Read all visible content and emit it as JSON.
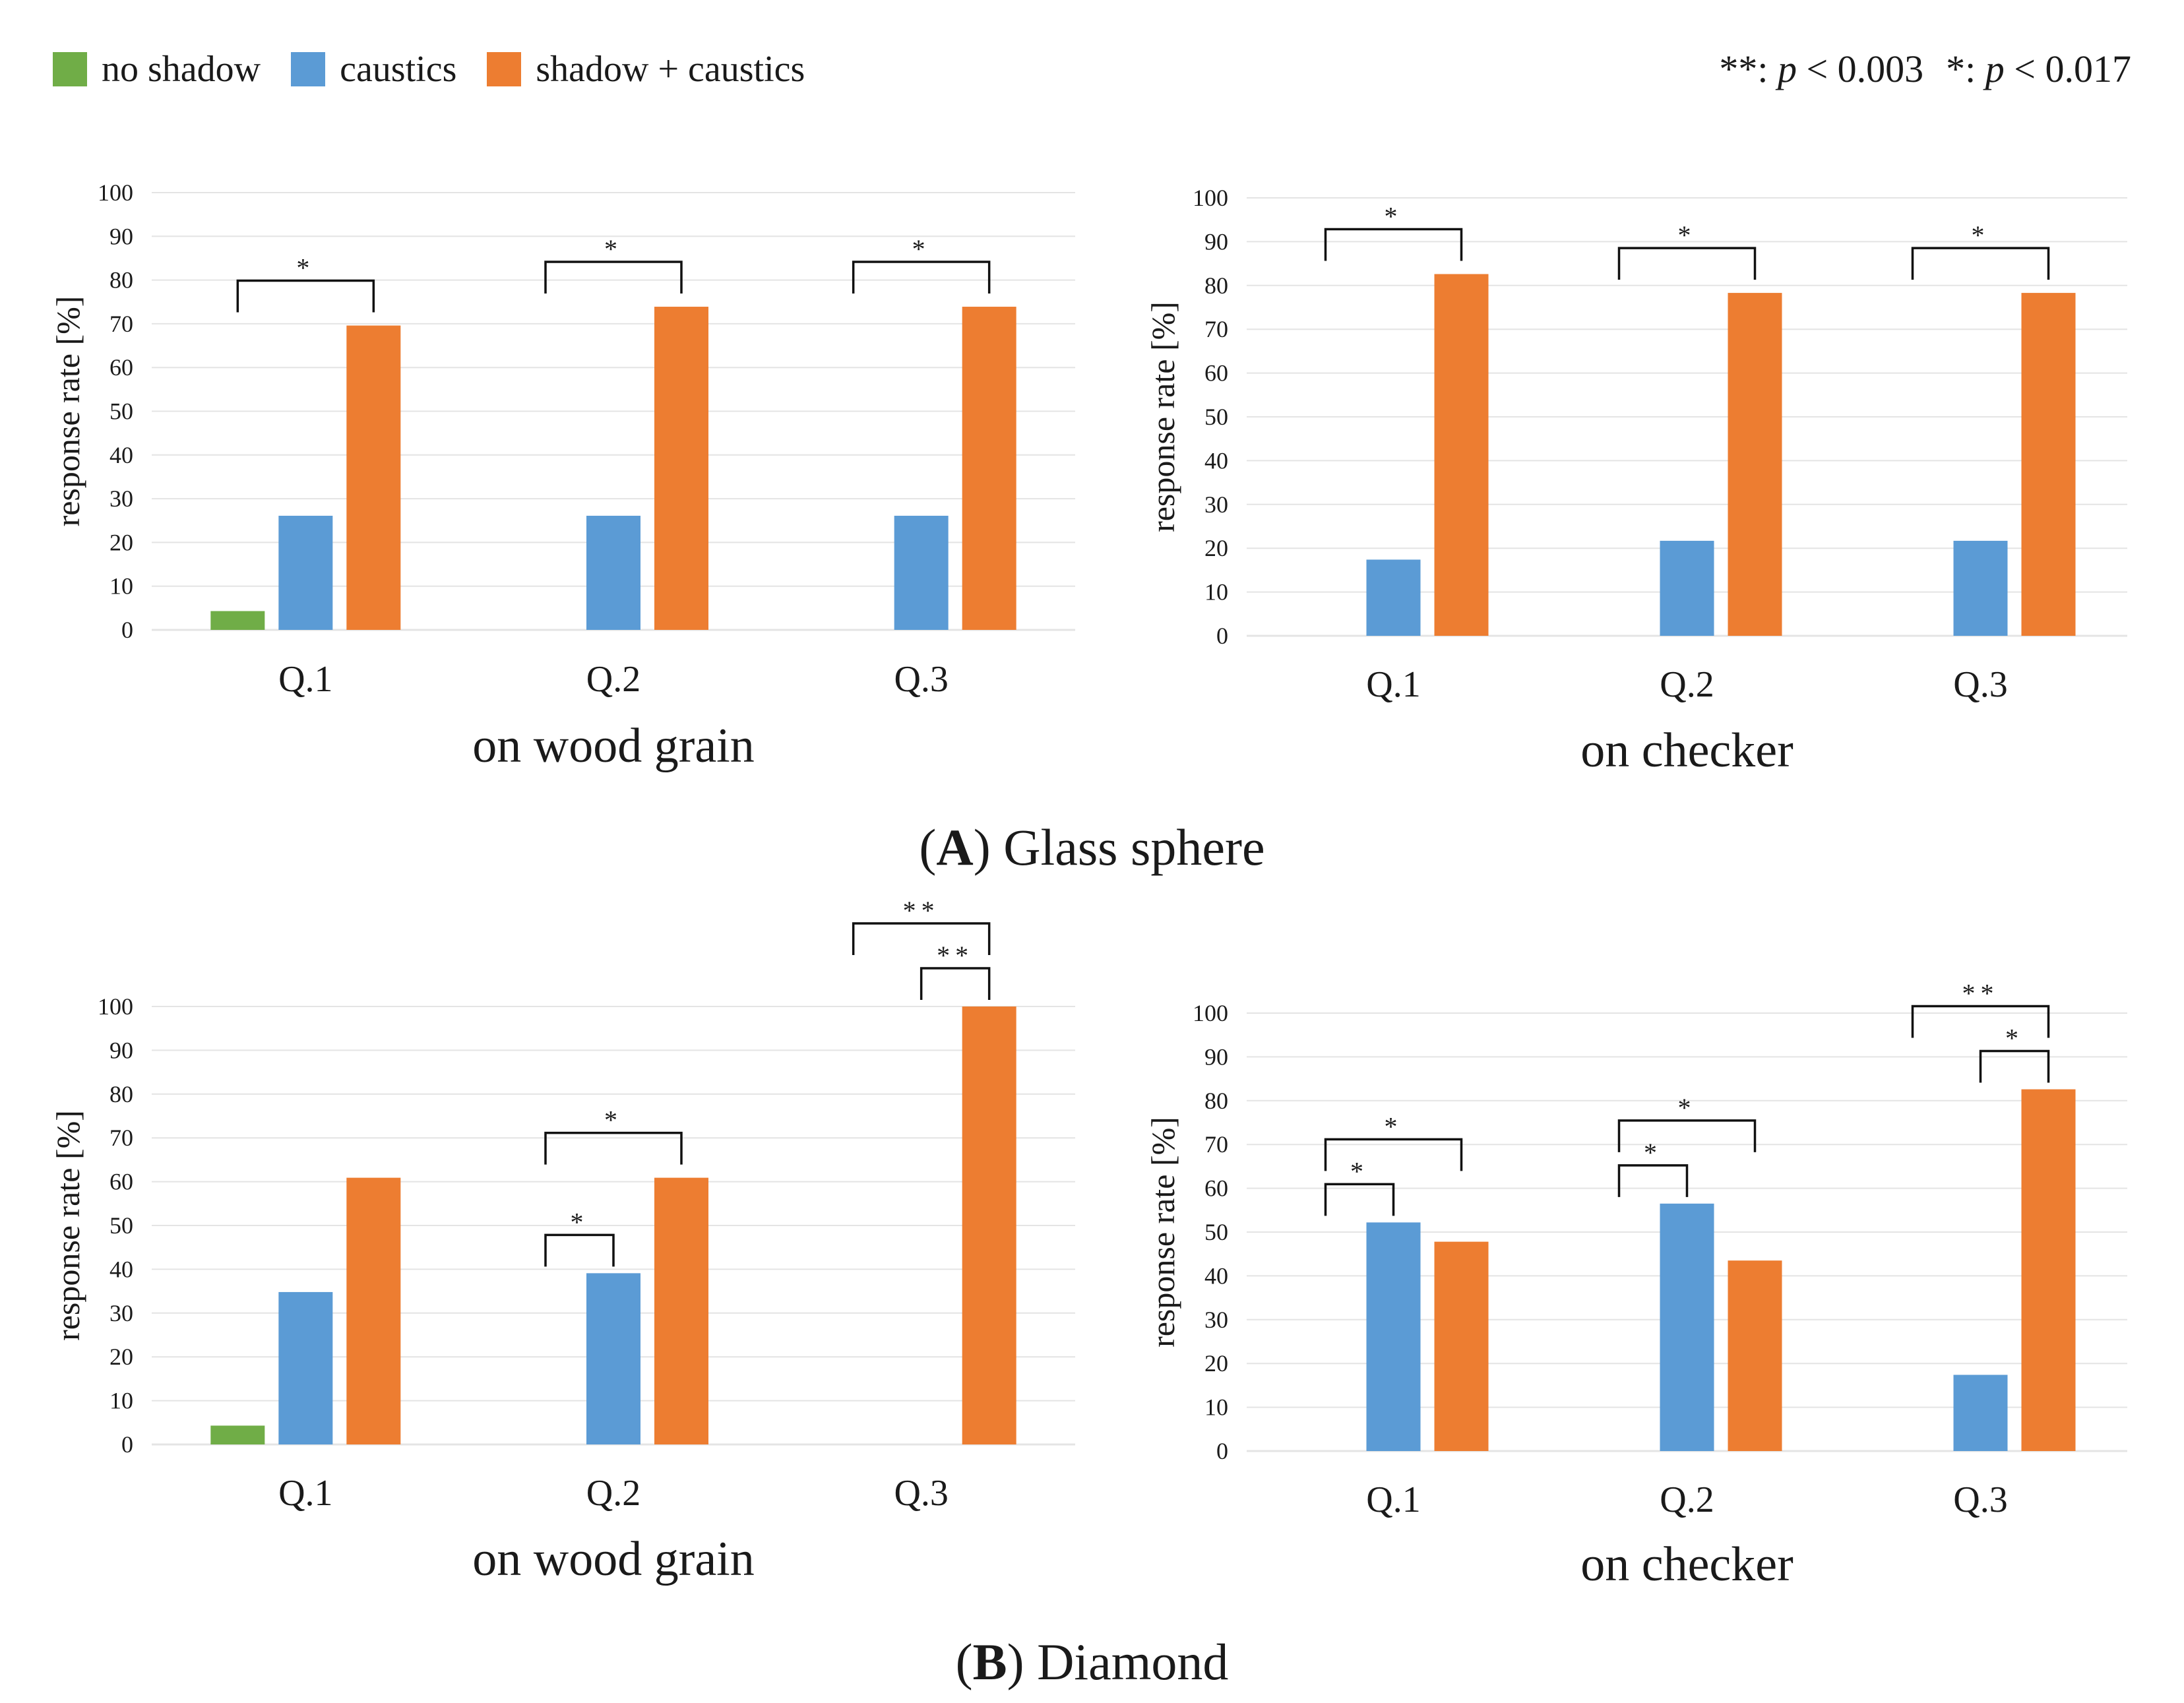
{
  "colors": {
    "no_shadow": "#70AD47",
    "caustics": "#5B9BD5",
    "shadow_caustics": "#ED7D31",
    "grid": "#e4e4e4",
    "bracket": "#111111"
  },
  "legend": {
    "items": [
      {
        "label": "no shadow",
        "color_key": "no_shadow"
      },
      {
        "label": "caustics",
        "color_key": "caustics"
      },
      {
        "label": "shadow + caustics",
        "color_key": "shadow_caustics"
      }
    ],
    "sig_double_marker": "**",
    "sig_double_sep": ": ",
    "sig_double_var": "p",
    "sig_double_rel": " < 0.003",
    "sig_single_marker": "*",
    "sig_single_sep": ": ",
    "sig_single_var": "p",
    "sig_single_rel": " < 0.017"
  },
  "captions": {
    "a_letter": "A",
    "a_rest": " Glass sphere",
    "b_letter": "B",
    "b_rest": " Diamond"
  },
  "chart_data": [
    {
      "type": "bar",
      "panel": "A",
      "subtitle": "on wood grain",
      "categories": [
        "Q.1",
        "Q.2",
        "Q.3"
      ],
      "series": [
        {
          "name": "no shadow",
          "color_key": "no_shadow",
          "values": [
            4.3,
            0,
            0
          ]
        },
        {
          "name": "caustics",
          "color_key": "caustics",
          "values": [
            26.1,
            26.1,
            26.1
          ]
        },
        {
          "name": "shadow + caustics",
          "color_key": "shadow_caustics",
          "values": [
            69.6,
            73.9,
            73.9
          ]
        }
      ],
      "ylabel": "response rate [%]",
      "ylim": [
        0,
        100
      ],
      "yticks": [
        0,
        10,
        20,
        30,
        40,
        50,
        60,
        70,
        80,
        90,
        100
      ],
      "grid": true,
      "brackets": [
        {
          "category": 0,
          "from": 0,
          "to": 2,
          "label": "*",
          "level": 0
        },
        {
          "category": 1,
          "from": 0,
          "to": 2,
          "label": "*",
          "level": 0
        },
        {
          "category": 2,
          "from": 0,
          "to": 2,
          "label": "*",
          "level": 0
        }
      ]
    },
    {
      "type": "bar",
      "panel": "A",
      "subtitle": "on checker",
      "categories": [
        "Q.1",
        "Q.2",
        "Q.3"
      ],
      "series": [
        {
          "name": "no shadow",
          "color_key": "no_shadow",
          "values": [
            0,
            0,
            0
          ]
        },
        {
          "name": "caustics",
          "color_key": "caustics",
          "values": [
            17.4,
            21.7,
            21.7
          ]
        },
        {
          "name": "shadow + caustics",
          "color_key": "shadow_caustics",
          "values": [
            82.6,
            78.3,
            78.3
          ]
        }
      ],
      "ylabel": "response rate [%]",
      "ylim": [
        0,
        100
      ],
      "yticks": [
        0,
        10,
        20,
        30,
        40,
        50,
        60,
        70,
        80,
        90,
        100
      ],
      "grid": true,
      "brackets": [
        {
          "category": 0,
          "from": 0,
          "to": 2,
          "label": "*",
          "level": 0
        },
        {
          "category": 1,
          "from": 0,
          "to": 2,
          "label": "*",
          "level": 0
        },
        {
          "category": 2,
          "from": 0,
          "to": 2,
          "label": "*",
          "level": 0
        }
      ]
    },
    {
      "type": "bar",
      "panel": "B",
      "subtitle": "on wood grain",
      "categories": [
        "Q.1",
        "Q.2",
        "Q.3"
      ],
      "series": [
        {
          "name": "no shadow",
          "color_key": "no_shadow",
          "values": [
            4.3,
            0,
            0
          ]
        },
        {
          "name": "caustics",
          "color_key": "caustics",
          "values": [
            34.8,
            39.1,
            0
          ]
        },
        {
          "name": "shadow + caustics",
          "color_key": "shadow_caustics",
          "values": [
            60.9,
            60.9,
            100
          ]
        }
      ],
      "ylabel": "response rate [%]",
      "ylim": [
        0,
        100
      ],
      "yticks": [
        0,
        10,
        20,
        30,
        40,
        50,
        60,
        70,
        80,
        90,
        100
      ],
      "grid": true,
      "brackets": [
        {
          "category": 1,
          "from": 0,
          "to": 1,
          "label": "*",
          "level": 0
        },
        {
          "category": 1,
          "from": 0,
          "to": 2,
          "label": "*",
          "level": 1
        },
        {
          "category": 2,
          "from": 1,
          "to": 2,
          "label": "**",
          "level": 0
        },
        {
          "category": 2,
          "from": 0,
          "to": 2,
          "label": "**",
          "level": 1
        }
      ]
    },
    {
      "type": "bar",
      "panel": "B",
      "subtitle": "on checker",
      "categories": [
        "Q.1",
        "Q.2",
        "Q.3"
      ],
      "series": [
        {
          "name": "no shadow",
          "color_key": "no_shadow",
          "values": [
            0,
            0,
            0
          ]
        },
        {
          "name": "caustics",
          "color_key": "caustics",
          "values": [
            52.2,
            56.5,
            17.4
          ]
        },
        {
          "name": "shadow + caustics",
          "color_key": "shadow_caustics",
          "values": [
            47.8,
            43.5,
            82.6
          ]
        }
      ],
      "ylabel": "response rate [%]",
      "ylim": [
        0,
        100
      ],
      "yticks": [
        0,
        10,
        20,
        30,
        40,
        50,
        60,
        70,
        80,
        90,
        100
      ],
      "grid": true,
      "brackets": [
        {
          "category": 0,
          "from": 0,
          "to": 1,
          "label": "*",
          "level": 0
        },
        {
          "category": 0,
          "from": 0,
          "to": 2,
          "label": "*",
          "level": 1
        },
        {
          "category": 1,
          "from": 0,
          "to": 1,
          "label": "*",
          "level": 0
        },
        {
          "category": 1,
          "from": 0,
          "to": 2,
          "label": "*",
          "level": 1
        },
        {
          "category": 2,
          "from": 1,
          "to": 2,
          "label": "*",
          "level": 0
        },
        {
          "category": 2,
          "from": 0,
          "to": 2,
          "label": "**",
          "level": 1
        }
      ]
    }
  ]
}
